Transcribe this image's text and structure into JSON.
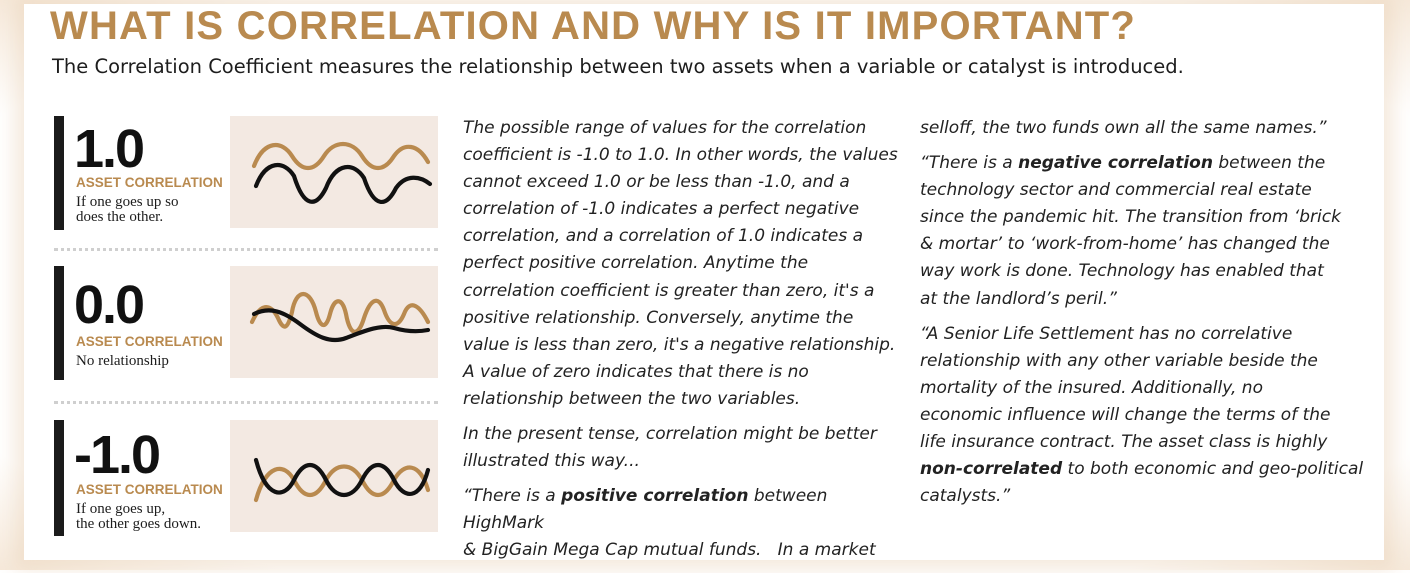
{
  "title": "WHAT IS CORRELATION AND WHY IS IT IMPORTANT?",
  "subtitle": "The Correlation Coefficient measures the relationship between two assets when a variable or catalyst is introduced.",
  "colors": {
    "gold": "#b98a4f",
    "black": "#111111",
    "wave_bg": "#f3e9e2"
  },
  "blocks": [
    {
      "value": "1.0",
      "label": "ASSET CORRELATION",
      "desc_lines": [
        "If one goes up so",
        "does the other."
      ]
    },
    {
      "value": "0.0",
      "label": "ASSET CORRELATION",
      "desc_lines": [
        "No relationship"
      ]
    },
    {
      "value": "-1.0",
      "label": "ASSET CORRELATION",
      "desc_lines": [
        "If one goes up,",
        "the other goes down."
      ]
    }
  ],
  "middle": {
    "p1_lines": [
      "The possible range of values for the correlation",
      "coefficient is -1.0 to 1.0. In other words, the values",
      "cannot exceed 1.0 or be less than -1.0, and a",
      "correlation of -1.0 indicates a perfect negative",
      "correlation, and a correlation of 1.0 indicates a",
      "perfect positive correlation. Anytime the",
      "correlation coefficient is greater than zero, it's a",
      "positive relationship. Conversely, anytime the",
      "value is less than zero, it's a negative relationship.",
      "A value of zero indicates that there is no",
      "relationship between the two variables."
    ],
    "p2_lines": [
      "In the present tense, correlation might be better",
      "illustrated this way..."
    ],
    "p3": {
      "pre": "“There is a ",
      "bold": "positive correlation",
      "post": " between HighMark",
      "line2": "& BigGain Mega Cap mutual funds.   In a market"
    }
  },
  "right": {
    "p1_line": "selloff, the two funds own all the same names.”",
    "p2": {
      "pre": "“There is a ",
      "bold": "negative correlation",
      "post": " between the",
      "rest_lines": [
        "technology sector and commercial real estate",
        "since the pandemic hit.  The transition from ‘brick",
        "& mortar’ to ‘work-from-home’ has changed the",
        "way work is done.  Technology has enabled that",
        "at the landlord’s peril.”"
      ]
    },
    "p3": {
      "lines": [
        "“A Senior Life Settlement has no correlative",
        "relationship with any other variable beside the",
        "mortality of the insured.  Additionally, no",
        "economic influence will change the terms of the",
        "life insurance contract.  The asset class is highly"
      ],
      "bold": "non-correlated",
      "post": " to both economic and geo-political",
      "last": "catalysts.”"
    }
  }
}
